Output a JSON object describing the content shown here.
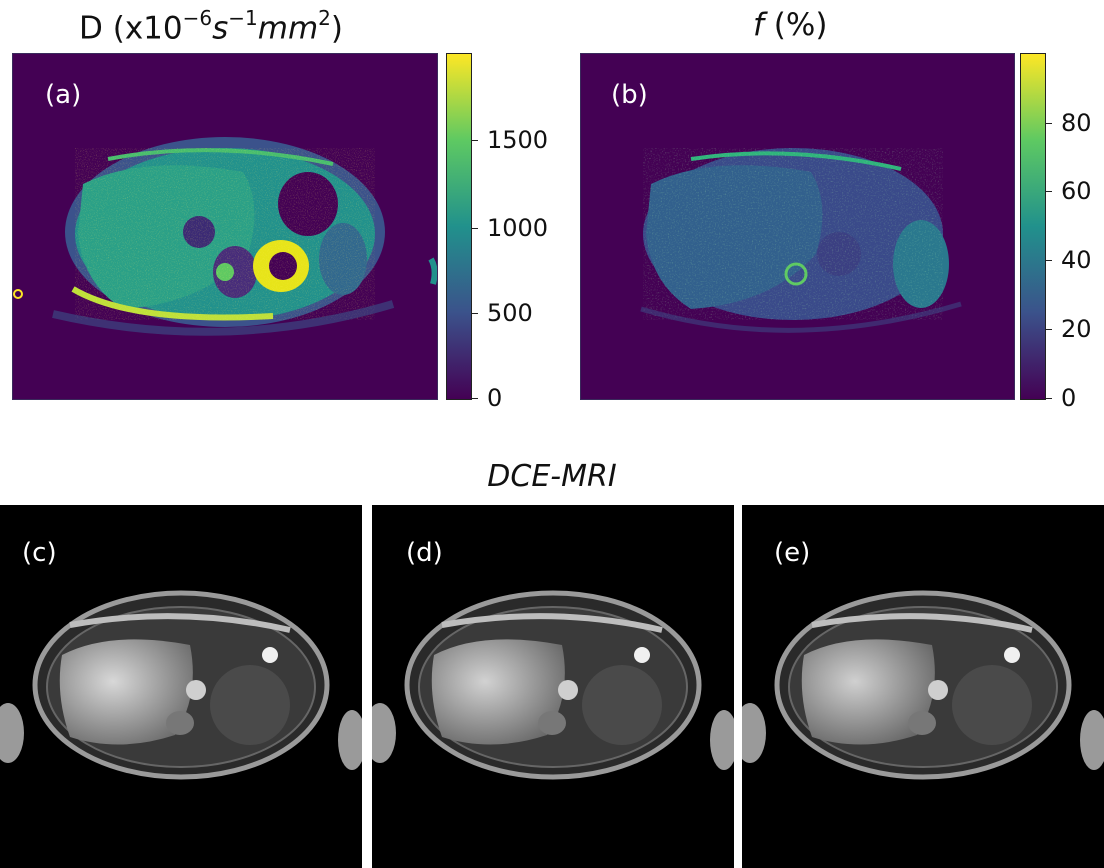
{
  "panels_top": [
    {
      "id": "a",
      "label": "(a)",
      "title_prefix": "D (x10",
      "title_exp1": "−6",
      "title_mid": "s",
      "title_exp2": "−1",
      "title_mm": "mm",
      "title_exp3": "2",
      "title_suffix": ")",
      "colorbar_ticks": [
        "1500",
        "1000",
        "500",
        "0"
      ]
    },
    {
      "id": "b",
      "label": "(b)",
      "title_f": "f",
      "title_pct": " (%)",
      "colorbar_ticks": [
        "80",
        "60",
        "40",
        "20",
        "0"
      ]
    }
  ],
  "section_title": "DCE-MRI",
  "panels_bottom": [
    {
      "id": "c",
      "label": "(c)"
    },
    {
      "id": "d",
      "label": "(d)"
    },
    {
      "id": "e",
      "label": "(e)"
    }
  ],
  "colormap": [
    "#440154",
    "#3b528b",
    "#21918c",
    "#5ec962",
    "#fde725"
  ]
}
